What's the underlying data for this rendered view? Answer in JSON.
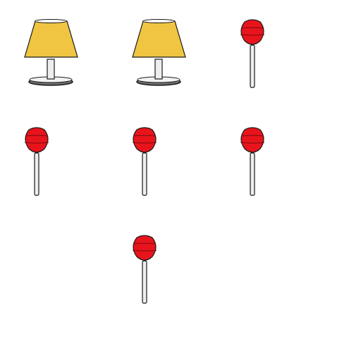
{
  "items": [
    {
      "type": "lamp"
    },
    {
      "type": "lamp"
    },
    {
      "type": "lollipop"
    },
    {
      "type": "lollipop"
    },
    {
      "type": "lollipop"
    },
    {
      "type": "lollipop"
    },
    {
      "type": "lollipop"
    }
  ],
  "colors": {
    "lamp_shade": "#f0c542",
    "lamp_base": "#6e6e6e",
    "lamp_stem": "#eeeeee",
    "lollipop_candy": "#e8141c",
    "lollipop_stick": "#eeeeee",
    "outline": "#1a1a1a"
  }
}
